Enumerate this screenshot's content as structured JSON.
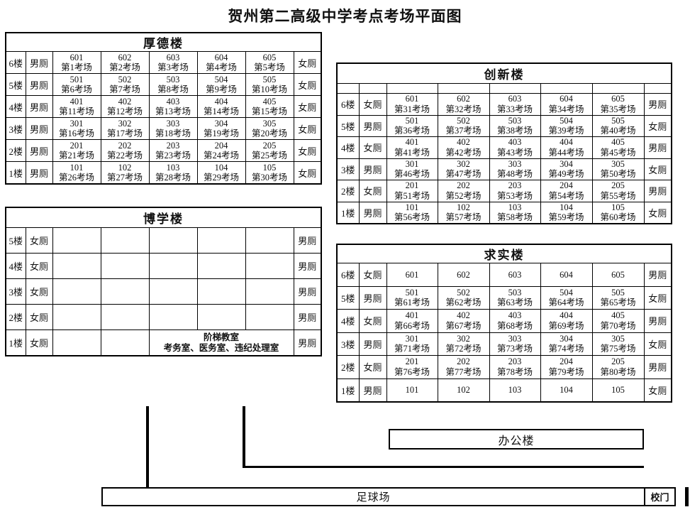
{
  "title": "贺州第二高级中学考点考场平面图",
  "office_label": "办公楼",
  "field_label": "足球场",
  "gate_label": "校门",
  "buildings": [
    {
      "name": "厚德楼",
      "spacer_row": false,
      "floors": [
        {
          "floor": "6楼",
          "left": "男厕",
          "right": "女厕",
          "rooms": [
            [
              "601",
              "第1考场"
            ],
            [
              "602",
              "第2考场"
            ],
            [
              "603",
              "第3考场"
            ],
            [
              "604",
              "第4考场"
            ],
            [
              "605",
              "第5考场"
            ]
          ]
        },
        {
          "floor": "5楼",
          "left": "男厕",
          "right": "女厕",
          "rooms": [
            [
              "501",
              "第6考场"
            ],
            [
              "502",
              "第7考场"
            ],
            [
              "503",
              "第8考场"
            ],
            [
              "504",
              "第9考场"
            ],
            [
              "505",
              "第10考场"
            ]
          ]
        },
        {
          "floor": "4楼",
          "left": "男厕",
          "right": "女厕",
          "rooms": [
            [
              "401",
              "第11考场"
            ],
            [
              "402",
              "第12考场"
            ],
            [
              "403",
              "第13考场"
            ],
            [
              "404",
              "第14考场"
            ],
            [
              "405",
              "第15考场"
            ]
          ]
        },
        {
          "floor": "3楼",
          "left": "男厕",
          "right": "女厕",
          "rooms": [
            [
              "301",
              "第16考场"
            ],
            [
              "302",
              "第17考场"
            ],
            [
              "303",
              "第18考场"
            ],
            [
              "304",
              "第19考场"
            ],
            [
              "305",
              "第20考场"
            ]
          ]
        },
        {
          "floor": "2楼",
          "left": "男厕",
          "right": "女厕",
          "rooms": [
            [
              "201",
              "第21考场"
            ],
            [
              "202",
              "第22考场"
            ],
            [
              "203",
              "第23考场"
            ],
            [
              "204",
              "第24考场"
            ],
            [
              "205",
              "第25考场"
            ]
          ]
        },
        {
          "floor": "1楼",
          "left": "男厕",
          "right": "女厕",
          "rooms": [
            [
              "101",
              "第26考场"
            ],
            [
              "102",
              "第27考场"
            ],
            [
              "103",
              "第28考场"
            ],
            [
              "104",
              "第29考场"
            ],
            [
              "105",
              "第30考场"
            ]
          ]
        }
      ]
    },
    {
      "name": "博学楼",
      "spacer_row": false,
      "floors": [
        {
          "floor": "5楼",
          "left": "女厕",
          "right": "男厕",
          "rooms": [
            [
              "",
              ""
            ],
            [
              "",
              ""
            ],
            [
              "",
              ""
            ],
            [
              "",
              ""
            ],
            [
              "",
              ""
            ]
          ]
        },
        {
          "floor": "4楼",
          "left": "女厕",
          "right": "男厕",
          "rooms": [
            [
              "",
              ""
            ],
            [
              "",
              ""
            ],
            [
              "",
              ""
            ],
            [
              "",
              ""
            ],
            [
              "",
              ""
            ]
          ]
        },
        {
          "floor": "3楼",
          "left": "女厕",
          "right": "男厕",
          "rooms": [
            [
              "",
              ""
            ],
            [
              "",
              ""
            ],
            [
              "",
              ""
            ],
            [
              "",
              ""
            ],
            [
              "",
              ""
            ]
          ]
        },
        {
          "floor": "2楼",
          "left": "女厕",
          "right": "男厕",
          "rooms": [
            [
              "",
              ""
            ],
            [
              "",
              ""
            ],
            [
              "",
              ""
            ],
            [
              "",
              ""
            ],
            [
              "",
              ""
            ]
          ]
        },
        {
          "floor": "1楼",
          "left": "女厕",
          "right": "男厕",
          "rooms": [
            [
              "",
              ""
            ],
            [
              "",
              ""
            ]
          ],
          "merged": {
            "span": 3,
            "lines": [
              "阶梯教室",
              "考务室、医务室、违纪处理室"
            ]
          }
        }
      ]
    },
    {
      "name": "创新楼",
      "spacer_row": true,
      "floors": [
        {
          "floor": "6楼",
          "left": "女厕",
          "right": "男厕",
          "rooms": [
            [
              "601",
              "第31考场"
            ],
            [
              "602",
              "第32考场"
            ],
            [
              "603",
              "第33考场"
            ],
            [
              "604",
              "第34考场"
            ],
            [
              "605",
              "第35考场"
            ]
          ]
        },
        {
          "floor": "5楼",
          "left": "男厕",
          "right": "女厕",
          "rooms": [
            [
              "501",
              "第36考场"
            ],
            [
              "502",
              "第37考场"
            ],
            [
              "503",
              "第38考场"
            ],
            [
              "504",
              "第39考场"
            ],
            [
              "505",
              "第40考场"
            ]
          ]
        },
        {
          "floor": "4楼",
          "left": "女厕",
          "right": "男厕",
          "rooms": [
            [
              "401",
              "第41考场"
            ],
            [
              "402",
              "第42考场"
            ],
            [
              "403",
              "第43考场"
            ],
            [
              "404",
              "第44考场"
            ],
            [
              "405",
              "第45考场"
            ]
          ]
        },
        {
          "floor": "3楼",
          "left": "男厕",
          "right": "女厕",
          "rooms": [
            [
              "301",
              "第46考场"
            ],
            [
              "302",
              "第47考场"
            ],
            [
              "303",
              "第48考场"
            ],
            [
              "304",
              "第49考场"
            ],
            [
              "305",
              "第50考场"
            ]
          ]
        },
        {
          "floor": "2楼",
          "left": "女厕",
          "right": "男厕",
          "rooms": [
            [
              "201",
              "第51考场"
            ],
            [
              "202",
              "第52考场"
            ],
            [
              "203",
              "第53考场"
            ],
            [
              "204",
              "第54考场"
            ],
            [
              "205",
              "第55考场"
            ]
          ]
        },
        {
          "floor": "1楼",
          "left": "男厕",
          "right": "女厕",
          "rooms": [
            [
              "101",
              "第56考场"
            ],
            [
              "102",
              "第57考场"
            ],
            [
              "103",
              "第58考场"
            ],
            [
              "104",
              "第59考场"
            ],
            [
              "105",
              "第60考场"
            ]
          ]
        }
      ]
    },
    {
      "name": "求实楼",
      "spacer_row": false,
      "floors": [
        {
          "floor": "6楼",
          "left": "女厕",
          "right": "男厕",
          "rooms": [
            [
              "601",
              ""
            ],
            [
              "602",
              ""
            ],
            [
              "603",
              ""
            ],
            [
              "604",
              ""
            ],
            [
              "605",
              ""
            ]
          ]
        },
        {
          "floor": "5楼",
          "left": "男厕",
          "right": "女厕",
          "rooms": [
            [
              "501",
              "第61考场"
            ],
            [
              "502",
              "第62考场"
            ],
            [
              "503",
              "第63考场"
            ],
            [
              "504",
              "第64考场"
            ],
            [
              "505",
              "第65考场"
            ]
          ]
        },
        {
          "floor": "4楼",
          "left": "女厕",
          "right": "男厕",
          "rooms": [
            [
              "401",
              "第66考场"
            ],
            [
              "402",
              "第67考场"
            ],
            [
              "403",
              "第68考场"
            ],
            [
              "404",
              "第69考场"
            ],
            [
              "405",
              "第70考场"
            ]
          ]
        },
        {
          "floor": "3楼",
          "left": "男厕",
          "right": "女厕",
          "rooms": [
            [
              "301",
              "第71考场"
            ],
            [
              "302",
              "第72考场"
            ],
            [
              "303",
              "第73考场"
            ],
            [
              "304",
              "第74考场"
            ],
            [
              "305",
              "第75考场"
            ]
          ]
        },
        {
          "floor": "2楼",
          "left": "女厕",
          "right": "男厕",
          "rooms": [
            [
              "201",
              "第76考场"
            ],
            [
              "202",
              "第77考场"
            ],
            [
              "203",
              "第78考场"
            ],
            [
              "204",
              "第79考场"
            ],
            [
              "205",
              "第80考场"
            ]
          ]
        },
        {
          "floor": "1楼",
          "left": "男厕",
          "right": "女厕",
          "rooms": [
            [
              "101",
              ""
            ],
            [
              "102",
              ""
            ],
            [
              "103",
              ""
            ],
            [
              "104",
              ""
            ],
            [
              "105",
              ""
            ]
          ]
        }
      ]
    }
  ]
}
